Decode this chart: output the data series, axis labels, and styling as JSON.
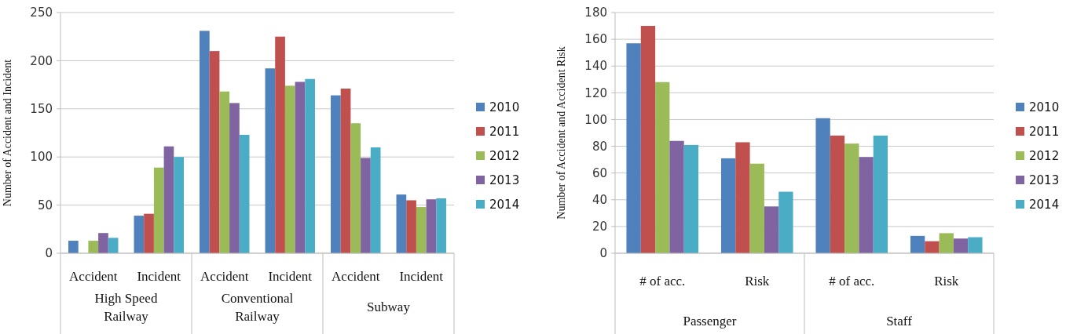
{
  "chart_data": [
    {
      "type": "bar",
      "ylabel": "Number of Accident and Incident",
      "categories": [
        "Accident",
        "Incident",
        "Accident",
        "Incident",
        "Accident",
        "Incident"
      ],
      "annotations": [
        "High Speed\nRailway",
        "Conventional\nRailway",
        "Subway"
      ],
      "series": [
        {
          "name": "2010",
          "color": "#4f81bd",
          "values": [
            13,
            39,
            231,
            192,
            164,
            61
          ]
        },
        {
          "name": "2011",
          "color": "#c0504d",
          "values": [
            null,
            41,
            210,
            225,
            171,
            55
          ]
        },
        {
          "name": "2012",
          "color": "#9bbb59",
          "values": [
            13,
            89,
            168,
            174,
            135,
            48
          ]
        },
        {
          "name": "2013",
          "color": "#8064a2",
          "values": [
            21,
            111,
            156,
            178,
            99,
            56
          ]
        },
        {
          "name": "2014",
          "color": "#4bacc6",
          "values": [
            16,
            100,
            123,
            181,
            110,
            57
          ]
        }
      ],
      "ylim": [
        0,
        250
      ],
      "yticks": [
        0,
        50,
        100,
        150,
        200,
        250
      ],
      "grid": "y",
      "legend": "right"
    },
    {
      "type": "bar",
      "ylabel": "Number of Accident and Accident Risk",
      "categories": [
        "# of acc.",
        "Risk",
        "# of acc.",
        "Risk"
      ],
      "annotations": [
        "Passenger",
        "Staff"
      ],
      "series": [
        {
          "name": "2010",
          "color": "#4f81bd",
          "values": [
            157,
            71,
            101,
            13
          ]
        },
        {
          "name": "2011",
          "color": "#c0504d",
          "values": [
            170,
            83,
            88,
            9
          ]
        },
        {
          "name": "2012",
          "color": "#9bbb59",
          "values": [
            128,
            67,
            82,
            15
          ]
        },
        {
          "name": "2013",
          "color": "#8064a2",
          "values": [
            84,
            35,
            72,
            11
          ]
        },
        {
          "name": "2014",
          "color": "#4bacc6",
          "values": [
            81,
            46,
            88,
            12
          ]
        }
      ],
      "ylim": [
        0,
        180
      ],
      "yticks": [
        0,
        20,
        40,
        60,
        80,
        100,
        120,
        140,
        160,
        180
      ],
      "grid": "y",
      "legend": "right"
    }
  ]
}
